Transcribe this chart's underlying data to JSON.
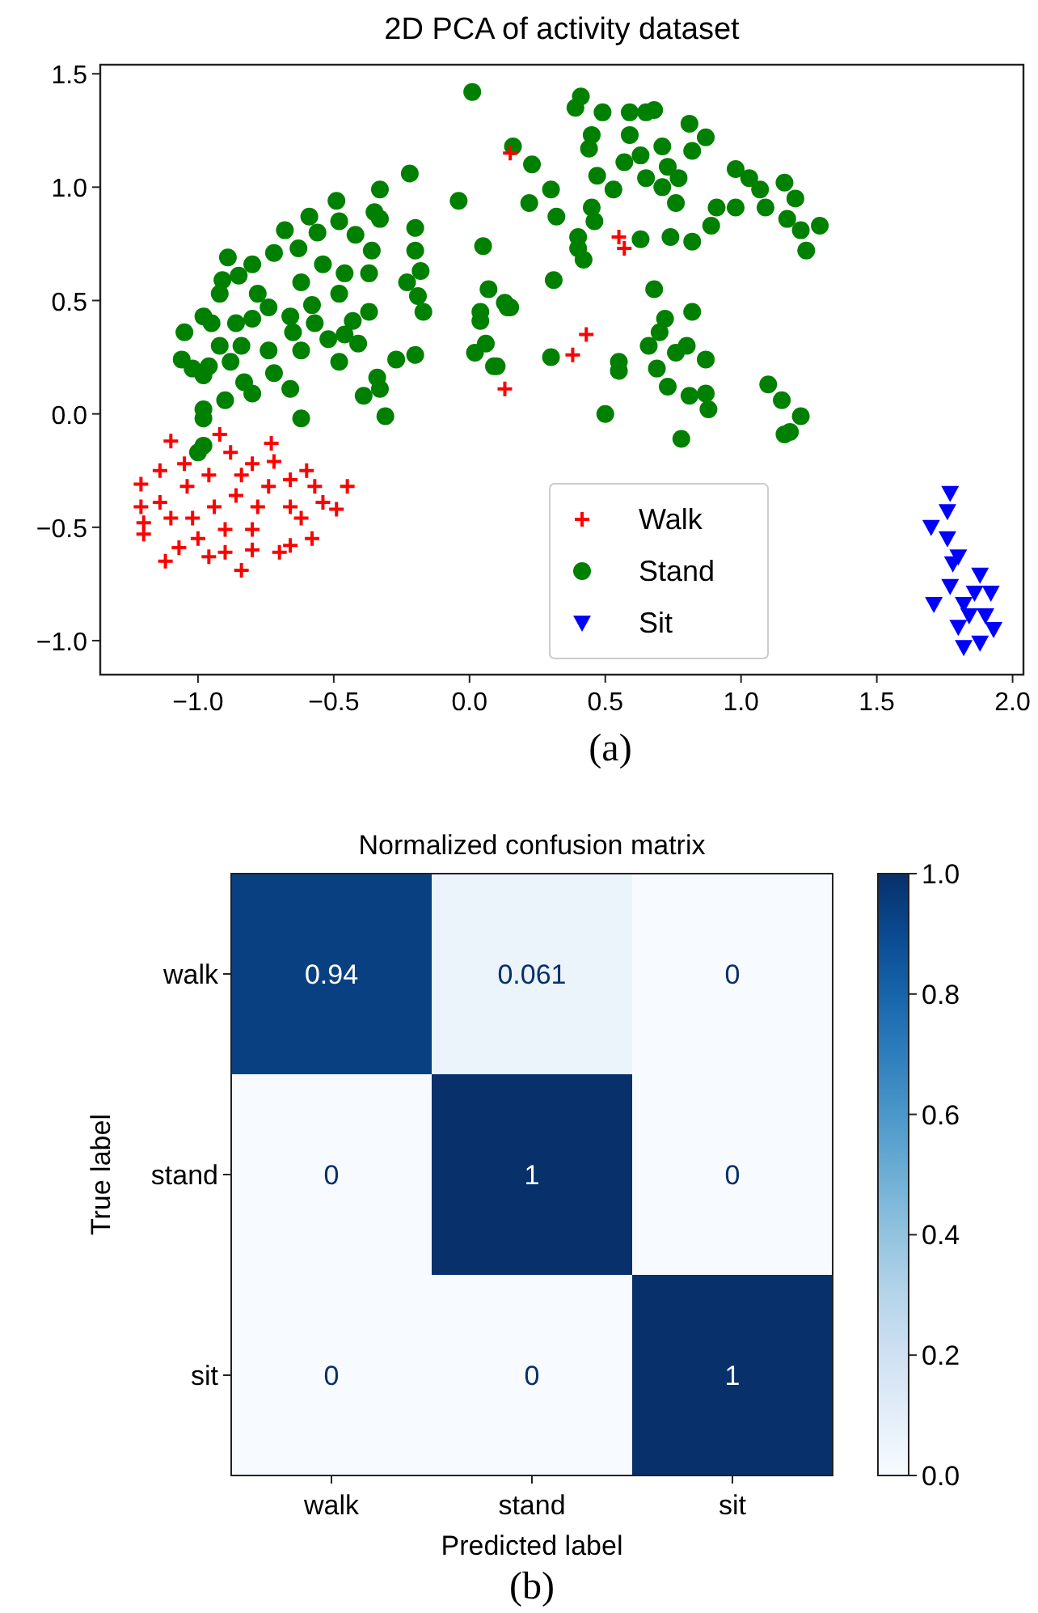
{
  "chart_data": [
    {
      "type": "scatter",
      "title": "2D PCA of activity dataset",
      "annotations": [
        "(a)"
      ],
      "xlim": [
        -1.36,
        2.04
      ],
      "ylim": [
        -1.15,
        1.54
      ],
      "xticks": [
        {
          "value": -1,
          "label": "−1.0"
        },
        {
          "value": -0.5,
          "label": "−0.5"
        },
        {
          "value": 0,
          "label": "0.0"
        },
        {
          "value": 0.5,
          "label": "0.5"
        },
        {
          "value": 1,
          "label": "1.0"
        },
        {
          "value": 1.5,
          "label": "1.5"
        },
        {
          "value": 2,
          "label": "2.0"
        }
      ],
      "yticks": [
        {
          "value": -1,
          "label": "−1.0"
        },
        {
          "value": -0.5,
          "label": "−0.5"
        },
        {
          "value": 0,
          "label": "0.0"
        },
        {
          "value": 0.5,
          "label": "0.5"
        },
        {
          "value": 1,
          "label": "1.0"
        },
        {
          "value": 1.5,
          "label": "1.5"
        }
      ],
      "legend": "bottom",
      "grid": false,
      "series": [
        {
          "name": "Walk",
          "color": "#ff0000",
          "marker": "cross",
          "x": [
            -1.1,
            -0.92,
            -0.73,
            -1.21,
            -1.21,
            -1.2,
            -1.2,
            -1.12,
            -1.07,
            -1.14,
            -1.04,
            -0.96,
            -0.88,
            -0.8,
            -0.72,
            -0.6,
            -0.57,
            -0.45,
            -0.49,
            -0.58,
            -0.66,
            -0.7,
            -0.8,
            -0.84,
            -0.9,
            -0.96,
            -1.0,
            -1.1,
            -1.14,
            -0.94,
            -0.86,
            -0.78,
            -0.8,
            -0.9,
            -1.02,
            -0.66,
            -0.62,
            -0.74,
            -0.84,
            -1.05,
            -0.66,
            -0.54,
            0.15,
            0.13,
            0.55,
            0.57,
            0.43,
            0.38
          ],
          "values": [
            -0.12,
            -0.09,
            -0.13,
            -0.31,
            -0.41,
            -0.48,
            -0.53,
            -0.65,
            -0.59,
            -0.25,
            -0.32,
            -0.27,
            -0.17,
            -0.22,
            -0.21,
            -0.25,
            -0.32,
            -0.32,
            -0.42,
            -0.55,
            -0.58,
            -0.61,
            -0.6,
            -0.69,
            -0.61,
            -0.63,
            -0.55,
            -0.46,
            -0.39,
            -0.41,
            -0.36,
            -0.41,
            -0.51,
            -0.51,
            -0.46,
            -0.41,
            -0.46,
            -0.32,
            -0.27,
            -0.22,
            -0.29,
            -0.39,
            1.15,
            0.11,
            0.78,
            0.73,
            0.35,
            0.26
          ]
        },
        {
          "name": "Stand",
          "color": "#008000",
          "marker": "circle",
          "x": [
            0.01,
            -0.22,
            -0.33,
            -0.04,
            -0.49,
            -0.35,
            -0.33,
            -0.59,
            -0.68,
            -0.2,
            -0.42,
            -0.48,
            -0.56,
            -0.2,
            -0.36,
            -0.63,
            -0.89,
            -0.72,
            0.05,
            -0.54,
            -0.18,
            -0.23,
            -0.37,
            -0.46,
            -0.8,
            -0.85,
            -0.91,
            -0.92,
            -0.62,
            -0.48,
            0.07,
            0.13,
            0.15,
            -0.19,
            -0.17,
            -0.37,
            -0.58,
            -0.78,
            -0.74,
            -0.8,
            -0.98,
            -0.95,
            -1.05,
            -0.86,
            -0.66,
            -0.65,
            -0.57,
            -0.43,
            0.04,
            0.04,
            -0.46,
            -0.52,
            -0.41,
            -0.92,
            -0.84,
            -0.74,
            -0.62,
            0.06,
            0.02,
            -0.2,
            -0.27,
            -0.48,
            -1.06,
            -1.02,
            -0.98,
            -0.96,
            -0.88,
            -0.83,
            -0.8,
            -0.66,
            -0.72,
            0.1,
            -0.34,
            -0.39,
            -0.33,
            -0.9,
            -0.98,
            -0.98,
            -0.62,
            -0.31,
            -0.98,
            -1.0,
            0.41,
            0.39,
            0.49,
            0.45,
            0.44,
            0.47,
            0.53,
            0.59,
            0.65,
            0.68,
            0.59,
            0.63,
            0.57,
            0.65,
            0.71,
            0.73,
            0.77,
            0.71,
            0.76,
            0.81,
            0.87,
            0.82,
            0.16,
            0.23,
            0.3,
            0.22,
            0.32,
            0.45,
            0.46,
            0.4,
            0.4,
            0.42,
            0.63,
            0.74,
            0.82,
            0.91,
            0.89,
            0.98,
            1.03,
            1.07,
            0.98,
            1.09,
            1.16,
            1.2,
            1.17,
            1.22,
            1.29,
            1.24,
            0.31,
            0.68,
            0.82,
            0.72,
            0.7,
            0.66,
            0.76,
            0.8,
            0.87,
            0.69,
            0.73,
            0.81,
            0.87,
            0.88,
            0.55,
            0.55,
            0.5,
            0.78,
            0.3,
            1.1,
            1.15,
            1.22,
            1.16,
            1.18,
            0.09,
            0.14
          ],
          "values": [
            1.42,
            1.06,
            0.99,
            0.94,
            0.94,
            0.89,
            0.86,
            0.87,
            0.81,
            0.82,
            0.79,
            0.85,
            0.8,
            0.72,
            0.72,
            0.73,
            0.69,
            0.71,
            0.74,
            0.66,
            0.63,
            0.58,
            0.62,
            0.62,
            0.66,
            0.61,
            0.59,
            0.53,
            0.58,
            0.53,
            0.55,
            0.49,
            0.47,
            0.52,
            0.45,
            0.45,
            0.48,
            0.53,
            0.47,
            0.42,
            0.43,
            0.4,
            0.36,
            0.4,
            0.43,
            0.36,
            0.4,
            0.41,
            0.45,
            0.41,
            0.35,
            0.33,
            0.31,
            0.3,
            0.3,
            0.28,
            0.28,
            0.31,
            0.27,
            0.26,
            0.24,
            0.23,
            0.24,
            0.2,
            0.17,
            0.21,
            0.23,
            0.14,
            0.09,
            0.11,
            0.18,
            0.21,
            0.16,
            0.08,
            0.11,
            0.06,
            0.02,
            -0.02,
            -0.02,
            -0.01,
            -0.14,
            -0.17,
            1.4,
            1.35,
            1.33,
            1.23,
            1.17,
            1.05,
            0.99,
            1.33,
            1.33,
            1.34,
            1.23,
            1.14,
            1.11,
            1.04,
            1.18,
            1.09,
            1.04,
            1.0,
            0.93,
            1.28,
            1.22,
            1.16,
            1.18,
            1.1,
            0.99,
            0.93,
            0.87,
            0.91,
            0.85,
            0.78,
            0.73,
            0.68,
            0.77,
            0.78,
            0.76,
            0.91,
            0.83,
            1.08,
            1.04,
            0.99,
            0.91,
            0.91,
            1.02,
            0.95,
            0.86,
            0.81,
            0.83,
            0.72,
            0.59,
            0.55,
            0.45,
            0.42,
            0.36,
            0.3,
            0.27,
            0.3,
            0.24,
            0.2,
            0.12,
            0.08,
            0.09,
            0.02,
            0.23,
            0.19,
            0.0,
            -0.11,
            0.25,
            0.13,
            0.06,
            -0.01,
            -0.09,
            -0.08,
            0.21,
            0.47
          ]
        },
        {
          "name": "Sit",
          "color": "#0000ff",
          "marker": "triangle",
          "x": [
            1.77,
            1.7,
            1.76,
            1.8,
            1.78,
            1.88,
            1.92,
            1.77,
            1.71,
            1.82,
            1.84,
            1.8,
            1.82,
            1.88,
            1.93,
            1.76,
            1.86,
            1.9
          ],
          "values": [
            -0.35,
            -0.5,
            -0.55,
            -0.63,
            -0.66,
            -0.71,
            -0.79,
            -0.76,
            -0.84,
            -0.84,
            -0.89,
            -0.94,
            -1.03,
            -1.01,
            -0.95,
            -0.43,
            -0.79,
            -0.89
          ]
        }
      ]
    },
    {
      "type": "heatmap",
      "title": "Normalized confusion matrix",
      "xlabel": "Predicted label",
      "ylabel": "True label",
      "annotations": [
        "(b)"
      ],
      "categories": [
        "walk",
        "stand",
        "sit"
      ],
      "y_categories": [
        "walk",
        "stand",
        "sit"
      ],
      "cells": [
        [
          0.94,
          0.061,
          0
        ],
        [
          0,
          1,
          0
        ],
        [
          0,
          0,
          1
        ]
      ],
      "data_labels": true,
      "clim": [
        0,
        1
      ],
      "cticks": [
        {
          "value": 0,
          "label": "0.0"
        },
        {
          "value": 0.2,
          "label": "0.2"
        },
        {
          "value": 0.4,
          "label": "0.4"
        },
        {
          "value": 0.6,
          "label": "0.6"
        },
        {
          "value": 0.8,
          "label": "0.8"
        },
        {
          "value": 1,
          "label": "1.0"
        }
      ]
    }
  ]
}
